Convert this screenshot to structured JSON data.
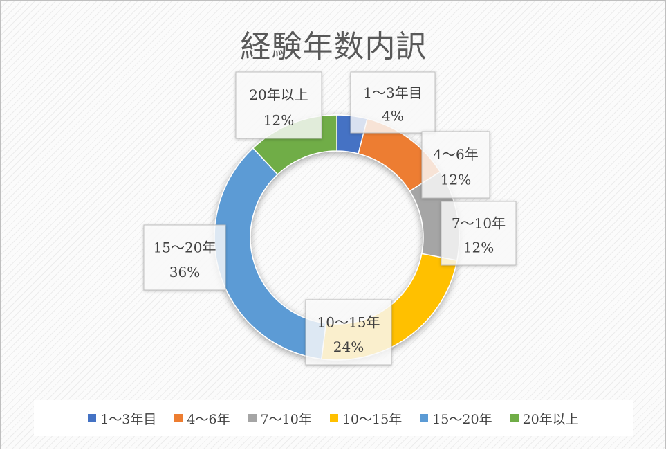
{
  "chart_data": {
    "type": "pie",
    "title": "経験年数内訳",
    "categories": [
      "1～3年目",
      "4～6年",
      "7～10年",
      "10～15年",
      "15～20年",
      "20年以上"
    ],
    "values": [
      4,
      12,
      12,
      24,
      36,
      12
    ],
    "value_labels": [
      "4%",
      "12%",
      "12%",
      "24%",
      "36%",
      "12%"
    ],
    "colors": [
      "#4472C4",
      "#ED7D31",
      "#A5A5A5",
      "#FFC000",
      "#5B9BD5",
      "#70AD47"
    ],
    "legend_position": "bottom",
    "style": "doughnut"
  }
}
